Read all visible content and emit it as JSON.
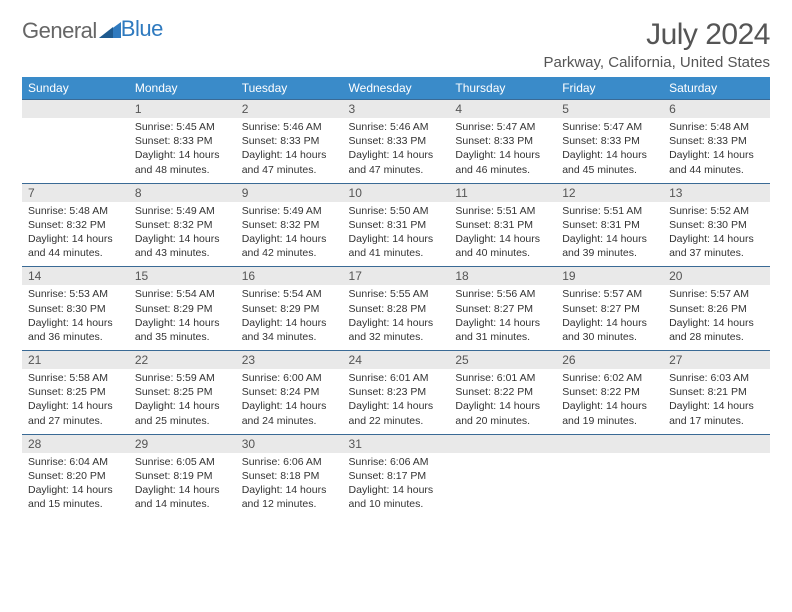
{
  "logo": {
    "text_gray": "General",
    "text_blue": "Blue"
  },
  "header": {
    "month_title": "July 2024",
    "location": "Parkway, California, United States"
  },
  "colors": {
    "header_bg": "#3a8bc9",
    "header_text": "#ffffff",
    "daynum_bg": "#e9e9e9",
    "row_border": "#3a6a95",
    "logo_gray": "#666666",
    "logo_blue": "#2f7abf"
  },
  "weekdays": [
    "Sunday",
    "Monday",
    "Tuesday",
    "Wednesday",
    "Thursday",
    "Friday",
    "Saturday"
  ],
  "weeks": [
    {
      "nums": [
        "",
        "1",
        "2",
        "3",
        "4",
        "5",
        "6"
      ],
      "cells": [
        [],
        [
          "Sunrise: 5:45 AM",
          "Sunset: 8:33 PM",
          "Daylight: 14 hours",
          "and 48 minutes."
        ],
        [
          "Sunrise: 5:46 AM",
          "Sunset: 8:33 PM",
          "Daylight: 14 hours",
          "and 47 minutes."
        ],
        [
          "Sunrise: 5:46 AM",
          "Sunset: 8:33 PM",
          "Daylight: 14 hours",
          "and 47 minutes."
        ],
        [
          "Sunrise: 5:47 AM",
          "Sunset: 8:33 PM",
          "Daylight: 14 hours",
          "and 46 minutes."
        ],
        [
          "Sunrise: 5:47 AM",
          "Sunset: 8:33 PM",
          "Daylight: 14 hours",
          "and 45 minutes."
        ],
        [
          "Sunrise: 5:48 AM",
          "Sunset: 8:33 PM",
          "Daylight: 14 hours",
          "and 44 minutes."
        ]
      ]
    },
    {
      "nums": [
        "7",
        "8",
        "9",
        "10",
        "11",
        "12",
        "13"
      ],
      "cells": [
        [
          "Sunrise: 5:48 AM",
          "Sunset: 8:32 PM",
          "Daylight: 14 hours",
          "and 44 minutes."
        ],
        [
          "Sunrise: 5:49 AM",
          "Sunset: 8:32 PM",
          "Daylight: 14 hours",
          "and 43 minutes."
        ],
        [
          "Sunrise: 5:49 AM",
          "Sunset: 8:32 PM",
          "Daylight: 14 hours",
          "and 42 minutes."
        ],
        [
          "Sunrise: 5:50 AM",
          "Sunset: 8:31 PM",
          "Daylight: 14 hours",
          "and 41 minutes."
        ],
        [
          "Sunrise: 5:51 AM",
          "Sunset: 8:31 PM",
          "Daylight: 14 hours",
          "and 40 minutes."
        ],
        [
          "Sunrise: 5:51 AM",
          "Sunset: 8:31 PM",
          "Daylight: 14 hours",
          "and 39 minutes."
        ],
        [
          "Sunrise: 5:52 AM",
          "Sunset: 8:30 PM",
          "Daylight: 14 hours",
          "and 37 minutes."
        ]
      ]
    },
    {
      "nums": [
        "14",
        "15",
        "16",
        "17",
        "18",
        "19",
        "20"
      ],
      "cells": [
        [
          "Sunrise: 5:53 AM",
          "Sunset: 8:30 PM",
          "Daylight: 14 hours",
          "and 36 minutes."
        ],
        [
          "Sunrise: 5:54 AM",
          "Sunset: 8:29 PM",
          "Daylight: 14 hours",
          "and 35 minutes."
        ],
        [
          "Sunrise: 5:54 AM",
          "Sunset: 8:29 PM",
          "Daylight: 14 hours",
          "and 34 minutes."
        ],
        [
          "Sunrise: 5:55 AM",
          "Sunset: 8:28 PM",
          "Daylight: 14 hours",
          "and 32 minutes."
        ],
        [
          "Sunrise: 5:56 AM",
          "Sunset: 8:27 PM",
          "Daylight: 14 hours",
          "and 31 minutes."
        ],
        [
          "Sunrise: 5:57 AM",
          "Sunset: 8:27 PM",
          "Daylight: 14 hours",
          "and 30 minutes."
        ],
        [
          "Sunrise: 5:57 AM",
          "Sunset: 8:26 PM",
          "Daylight: 14 hours",
          "and 28 minutes."
        ]
      ]
    },
    {
      "nums": [
        "21",
        "22",
        "23",
        "24",
        "25",
        "26",
        "27"
      ],
      "cells": [
        [
          "Sunrise: 5:58 AM",
          "Sunset: 8:25 PM",
          "Daylight: 14 hours",
          "and 27 minutes."
        ],
        [
          "Sunrise: 5:59 AM",
          "Sunset: 8:25 PM",
          "Daylight: 14 hours",
          "and 25 minutes."
        ],
        [
          "Sunrise: 6:00 AM",
          "Sunset: 8:24 PM",
          "Daylight: 14 hours",
          "and 24 minutes."
        ],
        [
          "Sunrise: 6:01 AM",
          "Sunset: 8:23 PM",
          "Daylight: 14 hours",
          "and 22 minutes."
        ],
        [
          "Sunrise: 6:01 AM",
          "Sunset: 8:22 PM",
          "Daylight: 14 hours",
          "and 20 minutes."
        ],
        [
          "Sunrise: 6:02 AM",
          "Sunset: 8:22 PM",
          "Daylight: 14 hours",
          "and 19 minutes."
        ],
        [
          "Sunrise: 6:03 AM",
          "Sunset: 8:21 PM",
          "Daylight: 14 hours",
          "and 17 minutes."
        ]
      ]
    },
    {
      "nums": [
        "28",
        "29",
        "30",
        "31",
        "",
        "",
        ""
      ],
      "cells": [
        [
          "Sunrise: 6:04 AM",
          "Sunset: 8:20 PM",
          "Daylight: 14 hours",
          "and 15 minutes."
        ],
        [
          "Sunrise: 6:05 AM",
          "Sunset: 8:19 PM",
          "Daylight: 14 hours",
          "and 14 minutes."
        ],
        [
          "Sunrise: 6:06 AM",
          "Sunset: 8:18 PM",
          "Daylight: 14 hours",
          "and 12 minutes."
        ],
        [
          "Sunrise: 6:06 AM",
          "Sunset: 8:17 PM",
          "Daylight: 14 hours",
          "and 10 minutes."
        ],
        [],
        [],
        []
      ]
    }
  ]
}
